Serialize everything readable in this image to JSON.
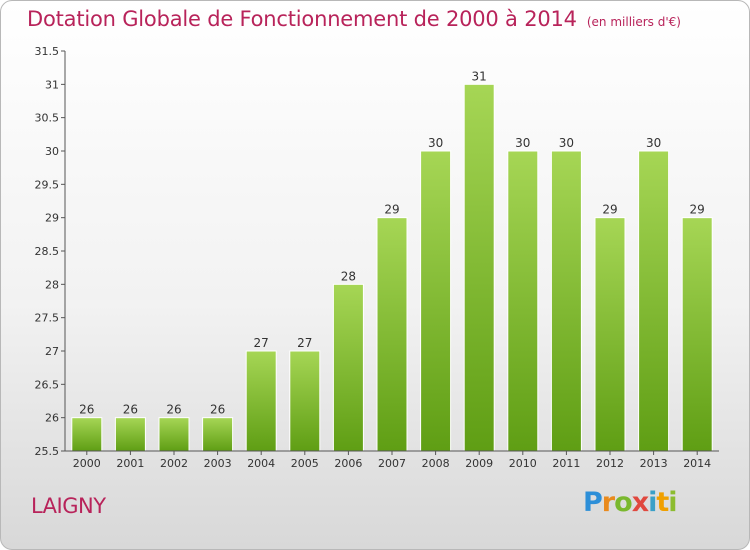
{
  "chart_data": {
    "type": "bar",
    "title": "Dotation Globale de Fonctionnement de 2000 à 2014",
    "subtitle": "(en milliers d'€)",
    "xlabel": "",
    "ylabel": "",
    "categories": [
      "2000",
      "2001",
      "2002",
      "2003",
      "2004",
      "2005",
      "2006",
      "2007",
      "2008",
      "2009",
      "2010",
      "2011",
      "2012",
      "2013",
      "2014"
    ],
    "values": [
      26,
      26,
      26,
      26,
      27,
      27,
      28,
      29,
      30,
      31,
      30,
      30,
      29,
      30,
      29
    ],
    "ylim": [
      25.5,
      31.5
    ],
    "yticks": [
      "25.5",
      "26",
      "26.5",
      "27",
      "27.5",
      "28",
      "28.5",
      "29",
      "29.5",
      "30",
      "30.5",
      "31",
      "31.5"
    ],
    "grid": false,
    "bar_color_top": "#a6d655",
    "bar_color_bottom": "#5f9e14"
  },
  "footer": {
    "commune": "LAIGNY",
    "logo_letters": [
      "P",
      "r",
      "o",
      "x",
      "i",
      "t",
      "i"
    ]
  },
  "colors": {
    "title": "#b8235a",
    "axis": "#555555",
    "label": "#333333"
  }
}
